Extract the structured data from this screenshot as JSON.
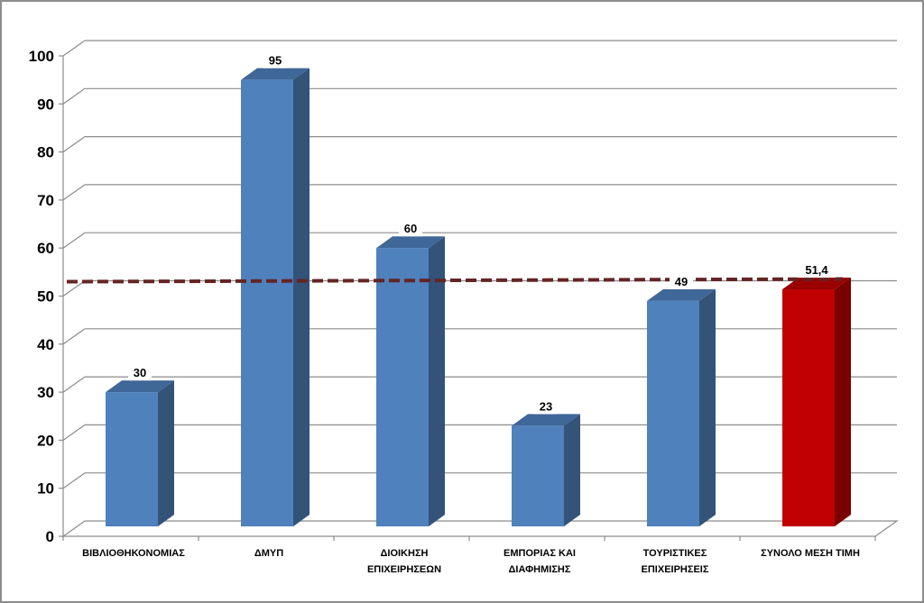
{
  "chart_data": {
    "type": "bar",
    "categories": [
      [
        "ΒΙΒΛΙΟΘΗΚΟΝΟΜΙΑΣ"
      ],
      [
        "ΔΜΥΠ"
      ],
      [
        "ΔΙΟΙΚΗΣΗ",
        "ΕΠΙΧΕΙΡΗΣΕΩΝ"
      ],
      [
        "ΕΜΠΟΡΙΑΣ ΚΑΙ",
        "ΔΙΑΦΗΜΙΣΗΣ"
      ],
      [
        "ΤΟΥΡΙΣΤΙΚΕΣ",
        "ΕΠΙΧΕΙΡΗΣΕΙΣ"
      ],
      [
        "ΣΥΝΟΛΟ ΜΕΣΗ ΤΙΜΗ"
      ]
    ],
    "values": [
      30,
      95,
      60,
      23,
      49,
      51.4
    ],
    "value_labels": [
      "30",
      "95",
      "60",
      "23",
      "49",
      "51,4"
    ],
    "bar_colors": [
      "#4f81bd",
      "#4f81bd",
      "#4f81bd",
      "#4f81bd",
      "#4f81bd",
      "#c00000"
    ],
    "reference_line": {
      "value": 51.4,
      "style": "dashed",
      "color": "#632523"
    },
    "ylim": [
      0,
      100
    ],
    "yticks": [
      0,
      10,
      20,
      30,
      40,
      50,
      60,
      70,
      80,
      90,
      100
    ],
    "grid": true,
    "title": "",
    "xlabel": "",
    "ylabel": ""
  }
}
